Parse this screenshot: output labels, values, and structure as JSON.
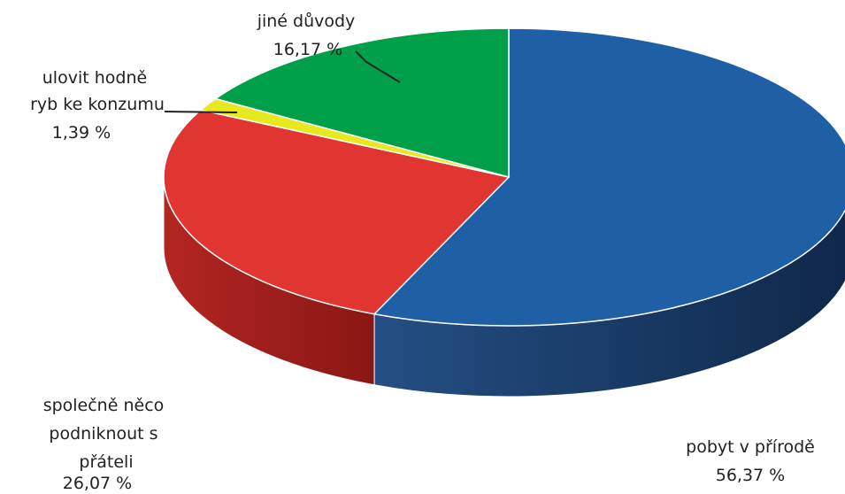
{
  "chart_data": {
    "type": "pie",
    "slices": [
      {
        "label": "pobyt v přírodě",
        "value": 56.37,
        "value_label": "56,37 %",
        "color": "#1f5fa6"
      },
      {
        "label": "společně něco podniknout s přáteli",
        "value": 26.07,
        "value_label": "26,07 %",
        "color": "#e03530"
      },
      {
        "label": "ulovit hodně ryb ke konzumu",
        "value": 1.39,
        "value_label": "1,39 %",
        "color": "#e8e81e"
      },
      {
        "label": "jiné důvody",
        "value": 16.17,
        "value_label": "16,17 %",
        "color": "#00a04a"
      }
    ]
  }
}
